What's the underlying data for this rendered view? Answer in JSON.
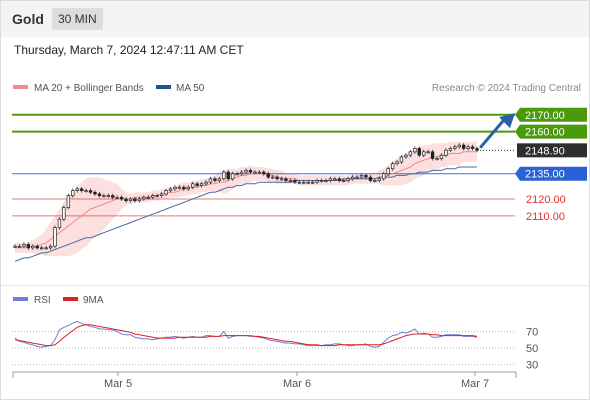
{
  "header": {
    "symbol": "Gold",
    "timeframe": "30 MIN",
    "timestamp": "Thursday, March 7, 2024 12:47:11 AM CET",
    "credit": "Research © 2024 Trading Central"
  },
  "legend": {
    "price": [
      {
        "label": "MA 20 + Bollinger Bands",
        "color": "#f28b8b"
      },
      {
        "label": "MA 50",
        "color": "#2b4f8e"
      }
    ],
    "rsi": [
      {
        "label": "RSI",
        "color": "#6b7fd7"
      },
      {
        "label": "9MA",
        "color": "#e02020"
      }
    ]
  },
  "chart_data": [
    {
      "type": "candlestick",
      "ylim": [
        2082,
        2177
      ],
      "last_price": 2148.9,
      "last_price_label": "2148.90",
      "levels": [
        {
          "value": 2170.0,
          "label": "2170.00",
          "kind": "target",
          "color": "#4a9a0c"
        },
        {
          "value": 2160.0,
          "label": "2160.00",
          "kind": "target",
          "color": "#4a9a0c"
        },
        {
          "value": 2135.0,
          "label": "2135.00",
          "kind": "pivot",
          "color": "#2962d4"
        },
        {
          "value": 2120.0,
          "label": "2120.00",
          "kind": "support",
          "color": "#e03030"
        },
        {
          "value": 2110.0,
          "label": "2110.00",
          "kind": "support",
          "color": "#e03030"
        }
      ],
      "close": [
        2092,
        2092,
        2093,
        2091,
        2092,
        2091,
        2091,
        2091,
        2092,
        2103,
        2108,
        2115,
        2122,
        2125,
        2126,
        2125,
        2125,
        2124,
        2123,
        2122,
        2122,
        2122,
        2121,
        2121,
        2120,
        2119,
        2120,
        2119,
        2120,
        2121,
        2121,
        2122,
        2122,
        2123,
        2125,
        2126,
        2127,
        2127,
        2126,
        2127,
        2129,
        2128,
        2129,
        2130,
        2132,
        2131,
        2132,
        2136,
        2132,
        2135,
        2135,
        2136,
        2137,
        2136,
        2136,
        2136,
        2135,
        2133,
        2133,
        2132,
        2132,
        2131,
        2131,
        2130,
        2130,
        2130,
        2130,
        2130,
        2131,
        2131,
        2131,
        2132,
        2132,
        2131,
        2131,
        2132,
        2133,
        2133,
        2134,
        2133,
        2131,
        2131,
        2132,
        2135,
        2138,
        2141,
        2142,
        2145,
        2146,
        2148,
        2150,
        2146,
        2148,
        2148,
        2144,
        2144,
        2146,
        2149,
        2150,
        2151,
        2152,
        2150,
        2151,
        2150,
        2149
      ],
      "ma20": [
        2091,
        2091,
        2091,
        2091,
        2092,
        2092,
        2093,
        2094,
        2096,
        2098,
        2100,
        2102,
        2104,
        2106,
        2108,
        2110,
        2112,
        2114,
        2115,
        2116,
        2117,
        2118,
        2119,
        2120,
        2120,
        2120,
        2120,
        2121,
        2121,
        2121,
        2121,
        2122,
        2122,
        2123,
        2123,
        2124,
        2124,
        2125,
        2126,
        2126,
        2127,
        2127,
        2128,
        2128,
        2129,
        2129,
        2130,
        2130,
        2131,
        2132,
        2133,
        2134,
        2134,
        2135,
        2135,
        2135,
        2135,
        2134,
        2134,
        2133,
        2133,
        2132,
        2132,
        2132,
        2131,
        2131,
        2131,
        2131,
        2131,
        2131,
        2131,
        2131,
        2131,
        2131,
        2131,
        2131,
        2132,
        2132,
        2132,
        2132,
        2132,
        2132,
        2133,
        2133,
        2134,
        2135,
        2136,
        2137,
        2138,
        2139,
        2141,
        2142,
        2143,
        2144,
        2145,
        2145,
        2146,
        2146,
        2147,
        2147,
        2147,
        2148,
        2148,
        2148,
        2148
      ],
      "bb_width": [
        3,
        3,
        3,
        3,
        4,
        5,
        6,
        8,
        10,
        12,
        14,
        16,
        18,
        19,
        20,
        20,
        20,
        19,
        18,
        17,
        15,
        13,
        11,
        9,
        6,
        4,
        3,
        3,
        3,
        3,
        3,
        3,
        3,
        3,
        3,
        3,
        3,
        4,
        4,
        4,
        4,
        4,
        4,
        4,
        4,
        5,
        6,
        7,
        7,
        6,
        5,
        5,
        5,
        5,
        4,
        4,
        4,
        4,
        4,
        4,
        4,
        3,
        3,
        3,
        3,
        3,
        3,
        3,
        3,
        3,
        3,
        3,
        3,
        3,
        3,
        3,
        3,
        3,
        3,
        3,
        3,
        3,
        4,
        5,
        6,
        7,
        8,
        9,
        9,
        9,
        9,
        9,
        9,
        8,
        8,
        8,
        7,
        7,
        7,
        7,
        7,
        6,
        6,
        6,
        6
      ],
      "ma50": [
        2083,
        2084,
        2085,
        2085,
        2086,
        2087,
        2088,
        2088,
        2089,
        2090,
        2091,
        2092,
        2093,
        2094,
        2095,
        2096,
        2097,
        2097,
        2098,
        2099,
        2100,
        2101,
        2102,
        2103,
        2104,
        2105,
        2106,
        2107,
        2108,
        2109,
        2110,
        2111,
        2112,
        2113,
        2114,
        2115,
        2116,
        2117,
        2118,
        2119,
        2120,
        2121,
        2122,
        2123,
        2124,
        2124,
        2125,
        2126,
        2127,
        2127,
        2128,
        2128,
        2129,
        2129,
        2129,
        2130,
        2130,
        2130,
        2130,
        2130,
        2130,
        2130,
        2130,
        2131,
        2131,
        2131,
        2131,
        2131,
        2131,
        2131,
        2131,
        2131,
        2131,
        2131,
        2132,
        2132,
        2132,
        2132,
        2132,
        2132,
        2132,
        2132,
        2133,
        2133,
        2133,
        2133,
        2134,
        2134,
        2134,
        2135,
        2135,
        2136,
        2136,
        2136,
        2137,
        2137,
        2137,
        2138,
        2138,
        2138,
        2139,
        2139,
        2139,
        2139,
        2139
      ],
      "x_labels": [
        "Mar 5",
        "Mar 6",
        "Mar 7"
      ]
    },
    {
      "type": "line",
      "ylim": [
        20,
        85
      ],
      "y_ticks": [
        70,
        50,
        30
      ],
      "series": [
        {
          "name": "RSI",
          "color": "#6b7fd7",
          "values": [
            62,
            58,
            57,
            55,
            54,
            52,
            51,
            52,
            53,
            60,
            72,
            75,
            77,
            80,
            82,
            80,
            78,
            76,
            75,
            73,
            73,
            72,
            72,
            70,
            67,
            66,
            66,
            63,
            62,
            61,
            61,
            60,
            61,
            62,
            63,
            63,
            64,
            63,
            62,
            63,
            64,
            63,
            63,
            65,
            65,
            64,
            64,
            70,
            62,
            64,
            65,
            65,
            65,
            64,
            64,
            63,
            62,
            60,
            59,
            58,
            57,
            56,
            56,
            55,
            55,
            54,
            53,
            53,
            53,
            53,
            54,
            54,
            55,
            55,
            54,
            53,
            53,
            54,
            54,
            55,
            52,
            51,
            52,
            57,
            62,
            65,
            66,
            69,
            68,
            70,
            73,
            67,
            68,
            67,
            63,
            63,
            64,
            66,
            66,
            66,
            66,
            64,
            64,
            64,
            63
          ]
        },
        {
          "name": "9MA",
          "color": "#e02020",
          "values": [
            60,
            59,
            58,
            57,
            56,
            55,
            54,
            53,
            53,
            54,
            58,
            63,
            67,
            71,
            75,
            77,
            78,
            78,
            77,
            76,
            75,
            74,
            73,
            72,
            71,
            70,
            69,
            67,
            66,
            65,
            64,
            63,
            62,
            62,
            62,
            62,
            62,
            63,
            63,
            63,
            63,
            63,
            63,
            63,
            64,
            64,
            64,
            65,
            65,
            65,
            65,
            65,
            65,
            65,
            64,
            64,
            63,
            62,
            61,
            60,
            59,
            58,
            58,
            57,
            56,
            55,
            54,
            54,
            54,
            53,
            53,
            53,
            53,
            54,
            54,
            54,
            54,
            54,
            54,
            54,
            54,
            54,
            54,
            55,
            57,
            59,
            61,
            63,
            65,
            66,
            67,
            67,
            67,
            67,
            66,
            66,
            65,
            65,
            65,
            65,
            65,
            65,
            65,
            65,
            64
          ]
        }
      ]
    }
  ]
}
